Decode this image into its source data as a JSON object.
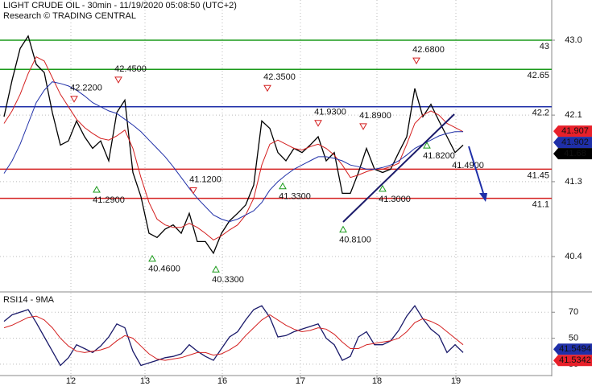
{
  "chart_data": [
    {
      "type": "line",
      "title": "LIGHT CRUDE OIL - 30min - 11/19/2020 05:08:50 (UTC+2)",
      "subtitle": "Research © TRADING CENTRAL",
      "x": [
        0,
        1,
        2,
        3,
        4,
        5,
        6,
        7,
        8,
        9,
        10,
        11,
        12,
        13,
        14,
        15,
        16,
        17,
        18,
        19,
        20,
        21,
        22,
        23,
        24,
        25,
        26,
        27,
        28,
        29,
        30,
        31,
        32,
        33,
        34,
        35,
        36,
        37,
        38,
        39,
        40,
        41,
        42,
        43,
        44,
        45,
        46,
        47,
        48,
        49,
        50,
        51,
        52,
        53,
        54,
        55,
        56,
        57
      ],
      "xlim": [
        -0.5,
        68
      ],
      "ylim": [
        39.985,
        43.483
      ],
      "yticks": [
        40.4,
        41.3,
        42.1,
        {
          "value": 43,
          "label": "43.0"
        }
      ],
      "grid": true,
      "series": [
        {
          "color": "#000000",
          "values": [
            42.08,
            42.52,
            42.9,
            43.05,
            42.71,
            42.61,
            42.13,
            41.74,
            41.79,
            42.03,
            41.84,
            41.7,
            41.79,
            41.55,
            42.13,
            42.28,
            41.41,
            41.12,
            40.68,
            40.63,
            40.73,
            40.78,
            40.68,
            40.92,
            40.58,
            40.58,
            40.44,
            40.68,
            40.83,
            40.92,
            41.02,
            41.26,
            42.03,
            41.94,
            41.65,
            41.55,
            41.7,
            41.65,
            41.74,
            41.84,
            41.55,
            41.65,
            41.16,
            41.16,
            41.41,
            41.7,
            41.45,
            41.41,
            41.45,
            41.65,
            41.84,
            42.42,
            42.08,
            42.23,
            42.03,
            41.84,
            41.65,
            41.74
          ]
        },
        {
          "color": "#d42020",
          "values": [
            42.0,
            42.15,
            42.35,
            42.6,
            42.8,
            42.75,
            42.55,
            42.35,
            42.2,
            42.05,
            41.95,
            41.88,
            41.82,
            41.8,
            41.85,
            41.92,
            41.7,
            41.35,
            41.05,
            40.85,
            40.78,
            40.75,
            40.75,
            40.8,
            40.75,
            40.68,
            40.6,
            40.65,
            40.72,
            40.78,
            40.9,
            41.1,
            41.5,
            41.75,
            41.8,
            41.75,
            41.7,
            41.68,
            41.72,
            41.75,
            41.7,
            41.62,
            41.5,
            41.35,
            41.38,
            41.42,
            41.45,
            41.45,
            41.48,
            41.52,
            41.75,
            42.0,
            42.1,
            42.15,
            42.1,
            42.0,
            41.95,
            41.9
          ]
        },
        {
          "color": "#2030a8",
          "values": [
            41.4,
            41.55,
            41.75,
            42.0,
            42.25,
            42.4,
            42.5,
            42.48,
            42.45,
            42.4,
            42.33,
            42.25,
            42.2,
            42.15,
            42.12,
            42.05,
            41.98,
            41.9,
            41.8,
            41.7,
            41.6,
            41.48,
            41.35,
            41.22,
            41.1,
            41.0,
            40.9,
            40.85,
            40.82,
            40.85,
            40.9,
            40.95,
            41.05,
            41.2,
            41.3,
            41.38,
            41.45,
            41.5,
            41.55,
            41.6,
            41.6,
            41.58,
            41.55,
            41.5,
            41.48,
            41.45,
            41.45,
            41.47,
            41.5,
            41.55,
            41.62,
            41.7,
            41.75,
            41.8,
            41.85,
            41.88,
            41.9,
            41.9
          ]
        }
      ],
      "levels": [
        {
          "value": 43,
          "color": "#1a9a1a"
        },
        {
          "value": 42.65,
          "color": "#1a9a1a"
        },
        {
          "value": 42.2,
          "color": "#1f2fa8"
        },
        {
          "value": 41.45,
          "color": "#d42020"
        },
        {
          "value": 41.1,
          "color": "#d42020"
        }
      ],
      "pivots": [
        {
          "x": 8.7,
          "value": 42.22,
          "label": "42.2200",
          "marker": "down"
        },
        {
          "x": 14.2,
          "value": 42.45,
          "label": "42.4500",
          "marker": "down"
        },
        {
          "x": 11.5,
          "value": 41.29,
          "label": "41.2900",
          "marker": "up"
        },
        {
          "x": 18.4,
          "value": 40.46,
          "label": "40.4600",
          "marker": "up"
        },
        {
          "x": 23.5,
          "value": 41.12,
          "label": "41.1200",
          "marker": "down"
        },
        {
          "x": 26.3,
          "value": 40.33,
          "label": "40.3300",
          "marker": "up"
        },
        {
          "x": 32.7,
          "value": 42.35,
          "label": "42.3500",
          "marker": "down"
        },
        {
          "x": 34.6,
          "value": 41.33,
          "label": "41.3300",
          "marker": "up"
        },
        {
          "x": 39,
          "value": 41.93,
          "label": "41.9300",
          "marker": "down"
        },
        {
          "x": 44.6,
          "value": 41.89,
          "label": "41.8900",
          "marker": "down"
        },
        {
          "x": 42.1,
          "value": 40.81,
          "label": "40.8100",
          "marker": "up"
        },
        {
          "x": 47,
          "value": 41.3,
          "label": "41.3000",
          "marker": "up"
        },
        {
          "x": 51.2,
          "value": 42.68,
          "label": "42.6800",
          "marker": "down"
        },
        {
          "x": 52.5,
          "value": 41.82,
          "label": "41.8200",
          "marker": "up"
        },
        {
          "x": 57.6,
          "value": 41.49,
          "label": "41.4900"
        }
      ],
      "price_markers": [
        {
          "value": 41.907,
          "color": "#e8202a"
        },
        {
          "value": 41.902,
          "color": "#1f2fa8"
        },
        {
          "value": 41.68,
          "color": "#000000"
        }
      ]
    },
    {
      "type": "line",
      "title": "RSI14 - 9MA",
      "x": [
        0,
        1,
        2,
        3,
        4,
        5,
        6,
        7,
        8,
        9,
        10,
        11,
        12,
        13,
        14,
        15,
        16,
        17,
        18,
        19,
        20,
        21,
        22,
        23,
        24,
        25,
        26,
        27,
        28,
        29,
        30,
        31,
        32,
        33,
        34,
        35,
        36,
        37,
        38,
        39,
        40,
        41,
        42,
        43,
        44,
        45,
        46,
        47,
        48,
        49,
        50,
        51,
        52,
        53,
        54,
        55,
        56,
        57
      ],
      "xlim": [
        -0.5,
        68
      ],
      "xticks": [
        {
          "value": 8.3,
          "label": "12"
        },
        {
          "value": 17.5,
          "label": "13"
        },
        {
          "value": 27.1,
          "label": "16"
        },
        {
          "value": 36.8,
          "label": "17"
        },
        {
          "value": 46.3,
          "label": "18"
        },
        {
          "value": 56.1,
          "label": "19"
        }
      ],
      "ylim": [
        21.9,
        85
      ],
      "yticks": [
        30,
        50,
        70
      ],
      "grid": true,
      "series": [
        {
          "color": "#1a1a6a",
          "values": [
            63,
            68,
            70,
            72,
            62,
            51,
            40,
            29,
            35,
            45,
            42,
            39,
            44,
            51,
            61,
            58,
            40,
            29,
            31,
            33,
            35,
            36,
            38,
            45,
            40,
            36,
            33,
            42,
            51,
            55,
            64,
            72,
            75,
            66,
            51,
            52,
            55,
            57,
            59,
            61,
            50,
            45,
            33,
            36,
            51,
            55,
            45,
            45,
            48,
            56,
            67,
            75,
            65,
            57,
            52,
            39,
            45,
            39
          ]
        },
        {
          "color": "#d42020",
          "values": [
            58,
            60,
            63,
            66,
            67,
            64,
            58,
            50,
            44,
            40,
            39,
            40,
            41,
            43,
            48,
            52,
            50,
            44,
            38,
            34,
            33,
            34,
            35,
            37,
            39,
            39,
            37,
            38,
            41,
            45,
            52,
            58,
            64,
            68,
            64,
            60,
            57,
            55,
            56,
            58,
            57,
            53,
            47,
            42,
            42,
            45,
            46,
            47,
            48,
            50,
            55,
            62,
            65,
            63,
            60,
            55,
            50,
            45
          ]
        }
      ],
      "price_markers": [
        {
          "value": 41.5494,
          "color": "#1f2fa8"
        },
        {
          "value": 41.5342,
          "color": "#e8202a"
        }
      ]
    }
  ]
}
